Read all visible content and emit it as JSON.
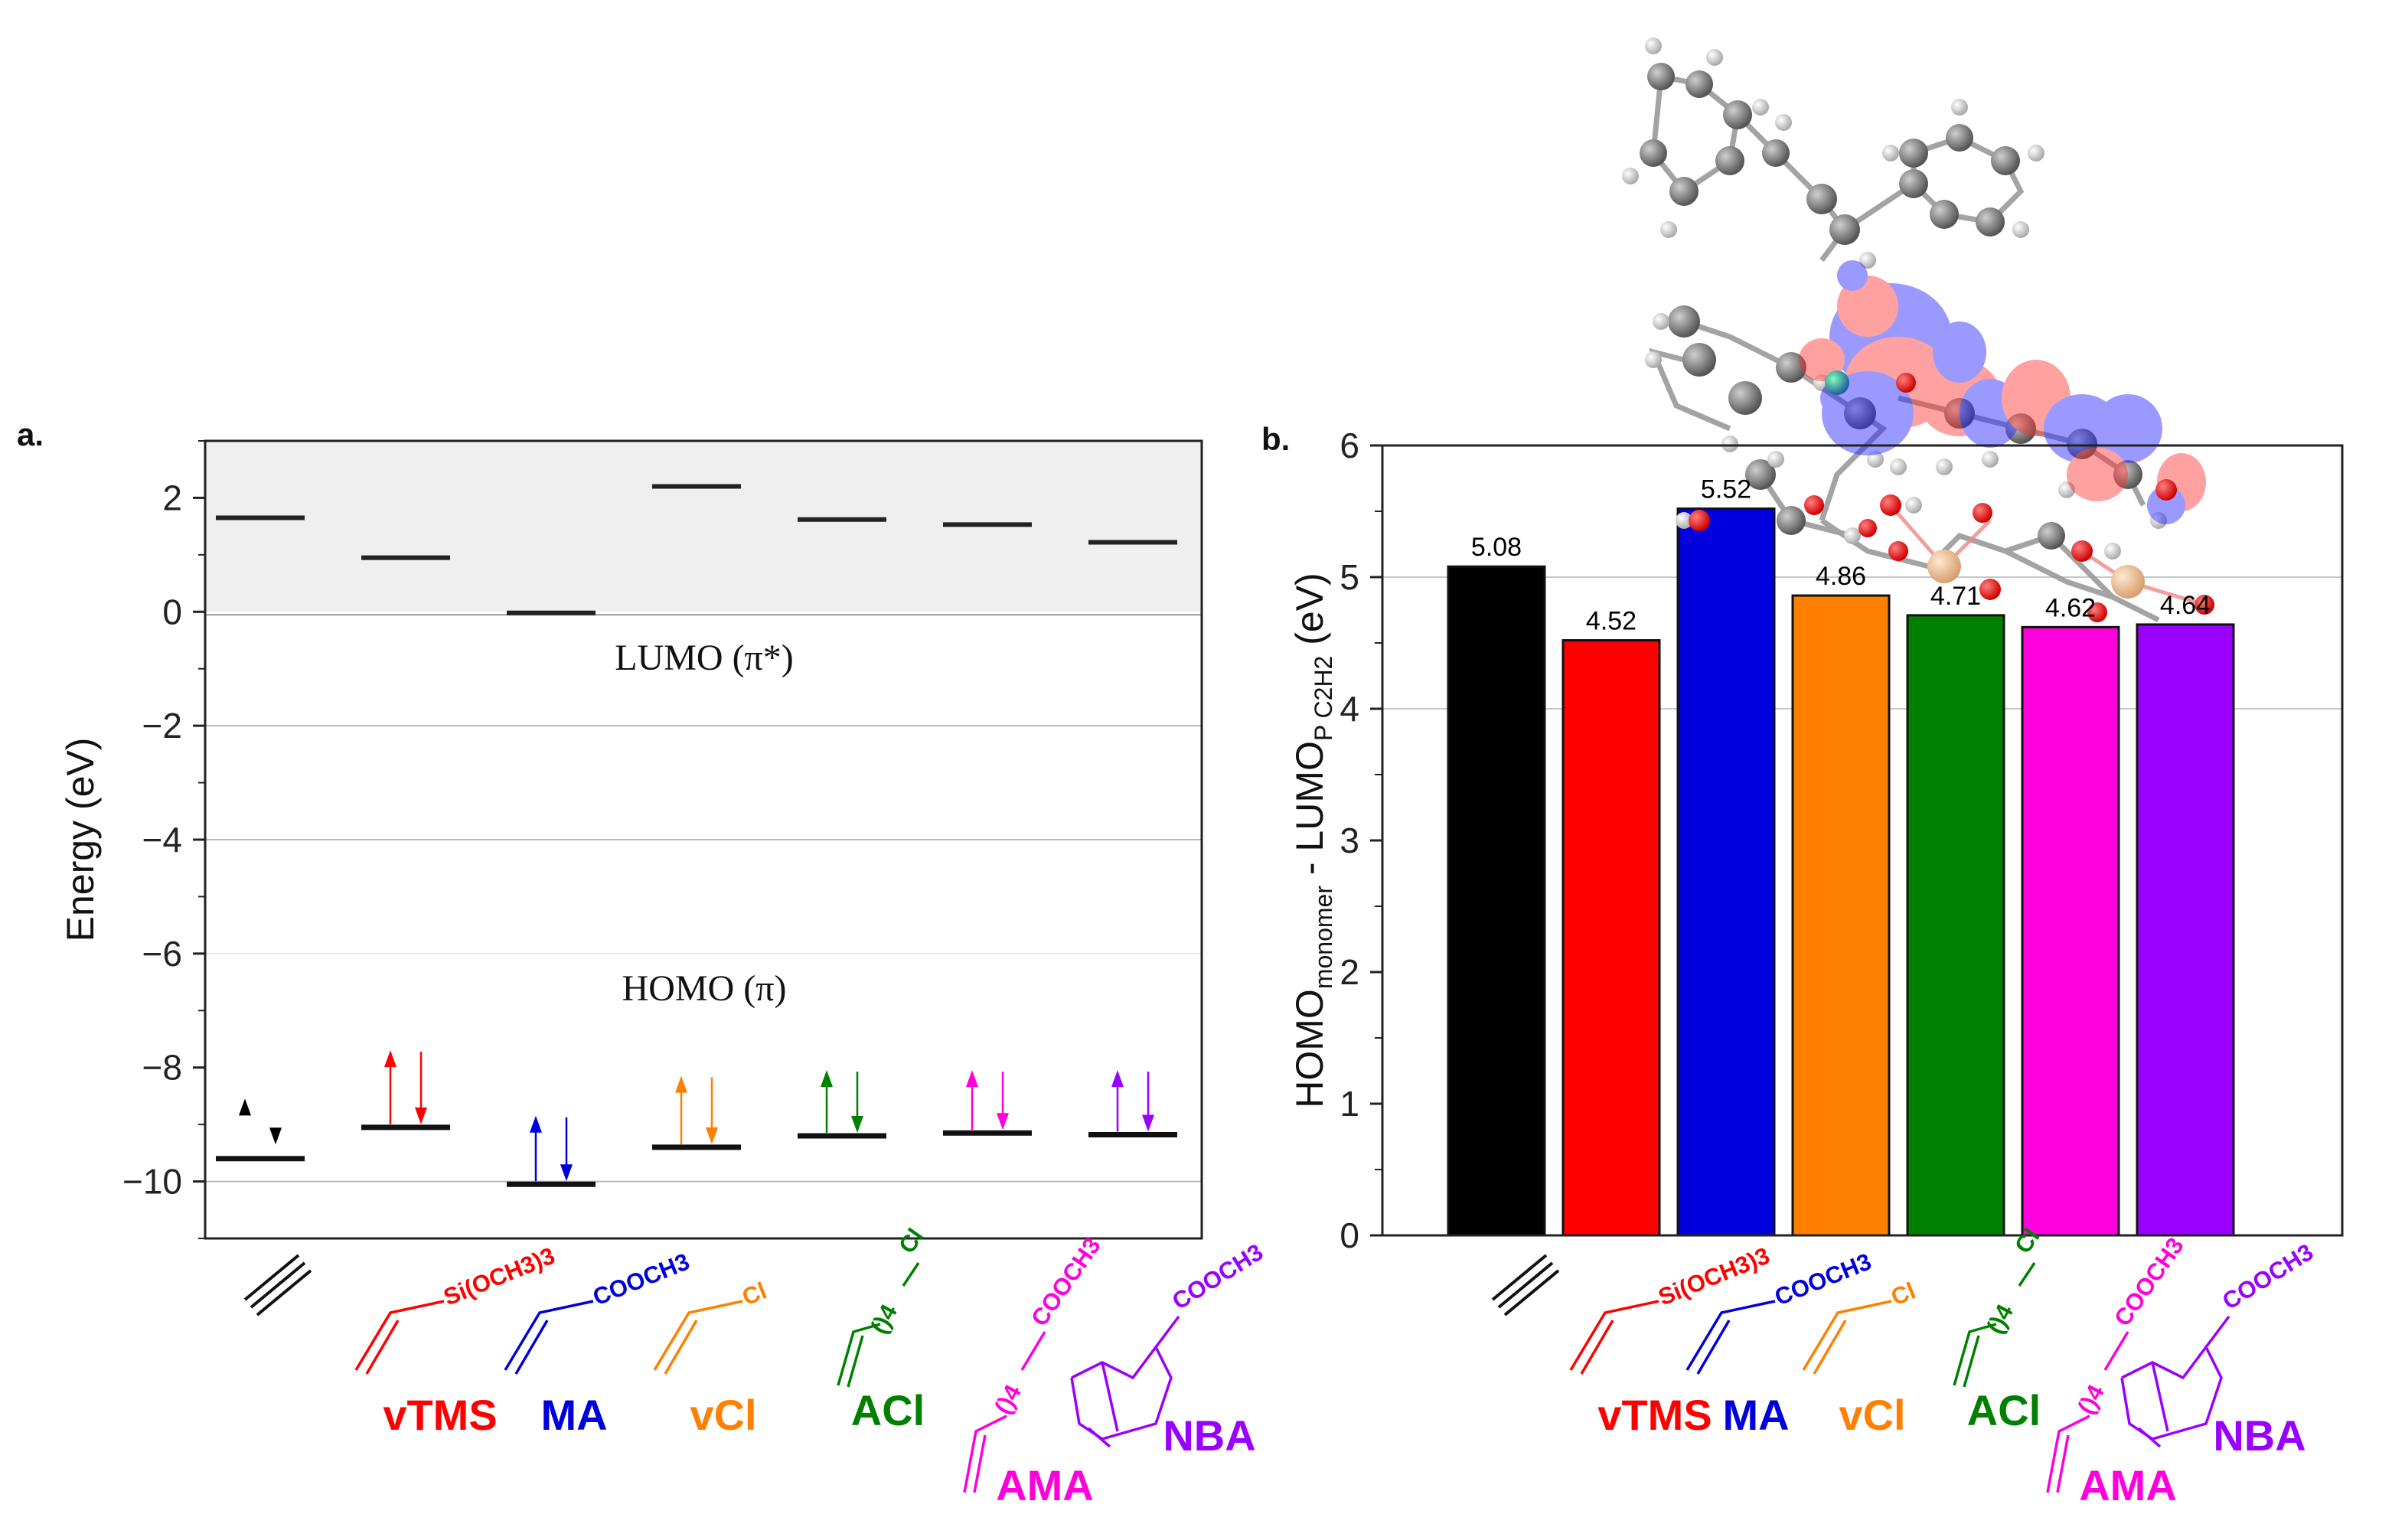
{
  "colors": {
    "C2H2": "#000000",
    "vTMS": "#ff0000",
    "MA": "#0000dd",
    "vCl": "#ff8000",
    "ACl": "#008000",
    "AMA": "#ff00dd",
    "NBA": "#9900ff",
    "shade": "#efefef"
  },
  "monomers": [
    {
      "key": "C2H2",
      "name": "",
      "formula": ""
    },
    {
      "key": "vTMS",
      "name": "vTMS",
      "formula": "Si(OCH3)3"
    },
    {
      "key": "MA",
      "name": "MA",
      "formula": "COOCH3"
    },
    {
      "key": "vCl",
      "name": "vCl",
      "formula": "Cl"
    },
    {
      "key": "ACl",
      "name": "ACl",
      "formula": "Cl",
      "chain": "()4"
    },
    {
      "key": "AMA",
      "name": "AMA",
      "formula": "COOCH3",
      "chain": "()4"
    },
    {
      "key": "NBA",
      "name": "NBA",
      "formula": "COOCH3"
    }
  ],
  "chart_data": [
    {
      "panel": "a.",
      "type": "scatter",
      "subtype": "energy-level diagram",
      "title": "",
      "ylabel": "Energy (eV)",
      "ylim": [
        -11,
        3
      ],
      "yticks": [
        2,
        0,
        -2,
        -4,
        -6,
        -8,
        -10
      ],
      "ytick_labels": [
        "2",
        "0",
        "−2",
        "−4",
        "−6",
        "−8",
        "−10"
      ],
      "grid_lines": [
        -2,
        -4,
        -6,
        -10
      ],
      "shaded_region": [
        0,
        3
      ],
      "annotations": [
        "LUMO (π*)",
        "HOMO (π)"
      ],
      "series": [
        {
          "name": "LUMO",
          "values": [
            1.65,
            0.95,
            -0.02,
            2.2,
            1.62,
            1.53,
            1.22
          ]
        },
        {
          "name": "HOMO",
          "values": [
            -9.6,
            -9.05,
            -10.05,
            -9.4,
            -9.2,
            -9.15,
            -9.18
          ]
        }
      ],
      "arrow_tops": [
        -8.6,
        -7.75,
        -8.9,
        -8.2,
        -8.1,
        -8.1,
        -8.1
      ]
    },
    {
      "panel": "b.",
      "type": "bar",
      "title": "",
      "ylabel": "HOMO",
      "ylabel_sub1": "monomer",
      "ylabel_mid": " - LUMO",
      "ylabel_sub2": "P C2H2",
      "ylabel_unit": " (eV)",
      "ylim": [
        0,
        6
      ],
      "yticks": [
        0,
        1,
        2,
        3,
        4,
        5,
        6
      ],
      "ytick_labels": [
        "0",
        "1",
        "2",
        "3",
        "4",
        "5",
        "6"
      ],
      "grid_lines": [
        4,
        5
      ],
      "values": [
        5.08,
        4.52,
        5.52,
        4.86,
        4.71,
        4.62,
        4.64
      ],
      "value_labels": [
        "5.08",
        "4.52",
        "5.52",
        "4.86",
        "4.71",
        "4.62",
        "4.64"
      ]
    }
  ]
}
